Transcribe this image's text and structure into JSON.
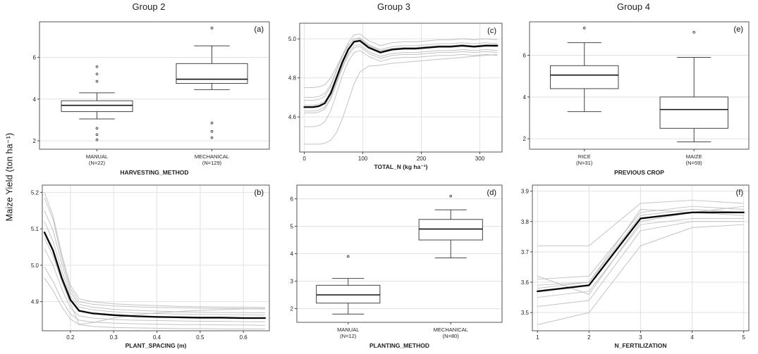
{
  "figure": {
    "group_headers": [
      "Group 2",
      "Group 3",
      "Group 4"
    ],
    "y_axis_label": "Maize Yield (ton ha⁻¹)",
    "colors": {
      "main_line": "#0a0a0a",
      "background_line": "#b9b9b9",
      "grid": "#e2e2e2",
      "box_stroke": "#444444",
      "border": "#555555",
      "text": "#222222"
    }
  },
  "chart_data": [
    {
      "id": "a",
      "panel_label": "(a)",
      "type": "boxplot",
      "group": "Group 2",
      "xlabel": "HARVESTING_METHOD",
      "ylim": [
        1.6,
        7.7
      ],
      "yticks": [
        2,
        4,
        6
      ],
      "ytick_labels": [
        "2",
        "4",
        "6"
      ],
      "categories": [
        {
          "label": "MANUAL",
          "n": "(N=22)"
        },
        {
          "label": "MECHANICAL",
          "n": "(N=129)"
        }
      ],
      "boxes": [
        {
          "low": 3.05,
          "q1": 3.4,
          "median": 3.7,
          "q3": 3.92,
          "high": 4.3,
          "outliers": [
            5.55,
            5.2,
            4.85,
            2.6,
            2.3,
            2.05
          ]
        },
        {
          "low": 4.45,
          "q1": 4.75,
          "median": 4.95,
          "q3": 5.7,
          "high": 6.55,
          "outliers": [
            7.4,
            2.85,
            2.45,
            2.15
          ]
        }
      ]
    },
    {
      "id": "b",
      "panel_label": "(b)",
      "type": "line",
      "group": "Group 2",
      "xlabel": "PLANT_SPACING  (m)",
      "ylim": [
        4.82,
        5.22
      ],
      "yticks": [
        4.9,
        5.0,
        5.1,
        5.2
      ],
      "ytick_labels": [
        "4.9",
        "5.0",
        "5.1",
        "5.2"
      ],
      "xlim": [
        0.135,
        0.66
      ],
      "xticks": [
        0.2,
        0.3,
        0.4,
        0.5,
        0.6
      ],
      "xtick_labels": [
        "0.2",
        "0.3",
        "0.4",
        "0.5",
        "0.6"
      ],
      "x": [
        0.14,
        0.16,
        0.18,
        0.2,
        0.22,
        0.25,
        0.3,
        0.35,
        0.4,
        0.45,
        0.5,
        0.55,
        0.6,
        0.65
      ],
      "main": [
        5.09,
        5.04,
        4.965,
        4.905,
        4.875,
        4.868,
        4.863,
        4.86,
        4.858,
        4.857,
        4.856,
        4.856,
        4.855,
        4.855
      ],
      "background_lines": [
        [
          5.185,
          5.125,
          5.02,
          4.935,
          4.9,
          4.893,
          4.888,
          4.886,
          4.884,
          4.883,
          4.882,
          4.881,
          4.881,
          4.88
        ],
        [
          5.12,
          5.065,
          4.985,
          4.915,
          4.885,
          4.878,
          4.872,
          4.869,
          4.867,
          4.866,
          4.865,
          4.864,
          4.864,
          4.863
        ],
        [
          5.045,
          5.0,
          4.935,
          4.882,
          4.861,
          4.855,
          4.851,
          4.849,
          4.848,
          4.847,
          4.846,
          4.846,
          4.845,
          4.845
        ],
        [
          4.995,
          4.955,
          4.905,
          4.866,
          4.849,
          4.844,
          4.841,
          4.839,
          4.838,
          4.837,
          4.837,
          4.836,
          4.836,
          4.835
        ],
        [
          5.15,
          5.095,
          5.005,
          4.925,
          4.893,
          4.885,
          4.879,
          4.876,
          4.874,
          4.872,
          4.871,
          4.87,
          4.87,
          4.869
        ],
        [
          4.965,
          4.93,
          4.886,
          4.852,
          4.837,
          4.832,
          4.829,
          4.828,
          4.827,
          4.826,
          4.826,
          4.825,
          4.825,
          4.825
        ],
        [
          5.075,
          5.025,
          4.955,
          4.895,
          4.838,
          4.842,
          4.855,
          4.864,
          4.869,
          4.873,
          4.876,
          4.878,
          4.88,
          4.881
        ],
        [
          5.2,
          5.135,
          5.03,
          4.945,
          4.908,
          4.9,
          4.894,
          4.891,
          4.889,
          4.887,
          4.886,
          4.885,
          4.885,
          4.884
        ]
      ]
    },
    {
      "id": "c",
      "panel_label": "(c)",
      "type": "line",
      "group": "Group 3",
      "xlabel": "TOTAL_N  (kg ha⁻¹)",
      "ylim": [
        4.42,
        5.08
      ],
      "yticks": [
        4.6,
        4.8,
        5.0
      ],
      "ytick_labels": [
        "4.6",
        "4.8",
        "5.0"
      ],
      "xlim": [
        -8,
        338
      ],
      "xticks": [
        0,
        100,
        200,
        300
      ],
      "xtick_labels": [
        "0",
        "100",
        "200",
        "300"
      ],
      "x": [
        0,
        15,
        25,
        35,
        45,
        55,
        65,
        75,
        85,
        95,
        110,
        130,
        150,
        170,
        190,
        210,
        230,
        250,
        270,
        290,
        310,
        330
      ],
      "main": [
        4.65,
        4.65,
        4.655,
        4.67,
        4.72,
        4.8,
        4.88,
        4.945,
        4.985,
        4.99,
        4.955,
        4.93,
        4.945,
        4.95,
        4.95,
        4.955,
        4.96,
        4.96,
        4.965,
        4.96,
        4.965,
        4.965
      ],
      "background_lines": [
        [
          4.685,
          4.685,
          4.69,
          4.705,
          4.755,
          4.835,
          4.915,
          4.98,
          5.02,
          5.025,
          4.99,
          4.965,
          4.98,
          4.985,
          4.985,
          4.99,
          4.995,
          4.995,
          5.0,
          4.995,
          5.0,
          4.995
        ],
        [
          4.62,
          4.62,
          4.625,
          4.64,
          4.69,
          4.77,
          4.85,
          4.915,
          4.955,
          4.96,
          4.925,
          4.9,
          4.915,
          4.92,
          4.92,
          4.925,
          4.93,
          4.93,
          4.935,
          4.93,
          4.935,
          4.93
        ],
        [
          4.75,
          4.75,
          4.755,
          4.765,
          4.8,
          4.855,
          4.915,
          4.965,
          5.0,
          5.005,
          4.97,
          4.945,
          4.96,
          4.965,
          4.965,
          4.97,
          4.975,
          4.975,
          4.98,
          4.975,
          4.98,
          4.975
        ],
        [
          4.55,
          4.55,
          4.555,
          4.575,
          4.63,
          4.72,
          4.81,
          4.885,
          4.93,
          4.94,
          4.91,
          4.885,
          4.9,
          4.905,
          4.905,
          4.91,
          4.915,
          4.915,
          4.92,
          4.915,
          4.92,
          4.915
        ],
        [
          4.46,
          4.46,
          4.46,
          4.465,
          4.48,
          4.52,
          4.59,
          4.68,
          4.77,
          4.83,
          4.86,
          4.865,
          4.875,
          4.88,
          4.885,
          4.89,
          4.895,
          4.9,
          4.905,
          4.91,
          4.915,
          4.92
        ],
        [
          4.66,
          4.66,
          4.665,
          4.68,
          4.73,
          4.81,
          4.89,
          4.95,
          4.99,
          4.995,
          4.96,
          4.935,
          4.95,
          4.955,
          4.955,
          4.96,
          4.965,
          4.965,
          4.97,
          4.965,
          4.97,
          4.965
        ],
        [
          4.7,
          4.7,
          4.705,
          4.72,
          4.765,
          4.84,
          4.91,
          4.965,
          5.0,
          5.0,
          4.965,
          4.94,
          4.95,
          4.955,
          4.955,
          4.96,
          4.96,
          4.96,
          4.965,
          4.96,
          4.965,
          4.96
        ],
        [
          4.63,
          4.63,
          4.635,
          4.65,
          4.7,
          4.78,
          4.86,
          4.925,
          4.965,
          4.97,
          4.935,
          4.91,
          4.925,
          4.93,
          4.93,
          4.935,
          4.94,
          4.94,
          4.945,
          4.94,
          4.945,
          4.94
        ]
      ]
    },
    {
      "id": "d",
      "panel_label": "(d)",
      "type": "boxplot",
      "group": "Group 3",
      "xlabel": "PLANTING_METHOD",
      "ylim": [
        1.5,
        6.5
      ],
      "yticks": [
        2,
        3,
        4,
        5,
        6
      ],
      "ytick_labels": [
        "2",
        "3",
        "4",
        "5",
        "6"
      ],
      "categories": [
        {
          "label": "MANUAL",
          "n": "(N=12)"
        },
        {
          "label": "MECHANICAL",
          "n": "(N=80)"
        }
      ],
      "boxes": [
        {
          "low": 1.8,
          "q1": 2.2,
          "median": 2.5,
          "q3": 2.85,
          "high": 3.1,
          "outliers": [
            3.9
          ]
        },
        {
          "low": 3.85,
          "q1": 4.5,
          "median": 4.9,
          "q3": 5.25,
          "high": 5.6,
          "outliers": [
            6.1
          ]
        }
      ]
    },
    {
      "id": "e",
      "panel_label": "(e)",
      "type": "boxplot",
      "group": "Group 4",
      "xlabel": "PREVIOUS CROP",
      "ylim": [
        1.5,
        7.6
      ],
      "yticks": [
        2,
        4,
        6
      ],
      "ytick_labels": [
        "2",
        "4",
        "6"
      ],
      "categories": [
        {
          "label": "RICE",
          "n": "(N=31)"
        },
        {
          "label": "MAIZE",
          "n": "(N=59)"
        }
      ],
      "boxes": [
        {
          "low": 3.3,
          "q1": 4.4,
          "median": 5.05,
          "q3": 5.5,
          "high": 6.6,
          "outliers": [
            7.3
          ]
        },
        {
          "low": 1.85,
          "q1": 2.5,
          "median": 3.4,
          "q3": 4.0,
          "high": 5.9,
          "outliers": [
            7.1
          ]
        }
      ]
    },
    {
      "id": "f",
      "panel_label": "(f)",
      "type": "line",
      "group": "Group 4",
      "xlabel": "N_FERTILIZATION",
      "ylim": [
        3.44,
        3.92
      ],
      "yticks": [
        3.5,
        3.6,
        3.7,
        3.8,
        3.9
      ],
      "ytick_labels": [
        "3.5",
        "3.6",
        "3.7",
        "3.8",
        "3.9"
      ],
      "xlim": [
        0.9,
        5.1
      ],
      "xticks": [
        1,
        2,
        3,
        4,
        5
      ],
      "xtick_labels": [
        "1",
        "2",
        "3",
        "4",
        "5"
      ],
      "x": [
        1,
        2,
        3,
        4,
        5
      ],
      "main": [
        3.57,
        3.59,
        3.81,
        3.83,
        3.83
      ],
      "background_lines": [
        [
          3.61,
          3.62,
          3.83,
          3.85,
          3.84
        ],
        [
          3.59,
          3.6,
          3.82,
          3.84,
          3.83
        ],
        [
          3.55,
          3.57,
          3.79,
          3.81,
          3.81
        ],
        [
          3.52,
          3.54,
          3.77,
          3.8,
          3.8
        ],
        [
          3.72,
          3.72,
          3.86,
          3.87,
          3.86
        ],
        [
          3.46,
          3.5,
          3.72,
          3.78,
          3.79
        ],
        [
          3.62,
          3.56,
          3.8,
          3.83,
          3.82
        ],
        [
          3.58,
          3.6,
          3.84,
          3.83,
          3.85
        ]
      ]
    }
  ]
}
